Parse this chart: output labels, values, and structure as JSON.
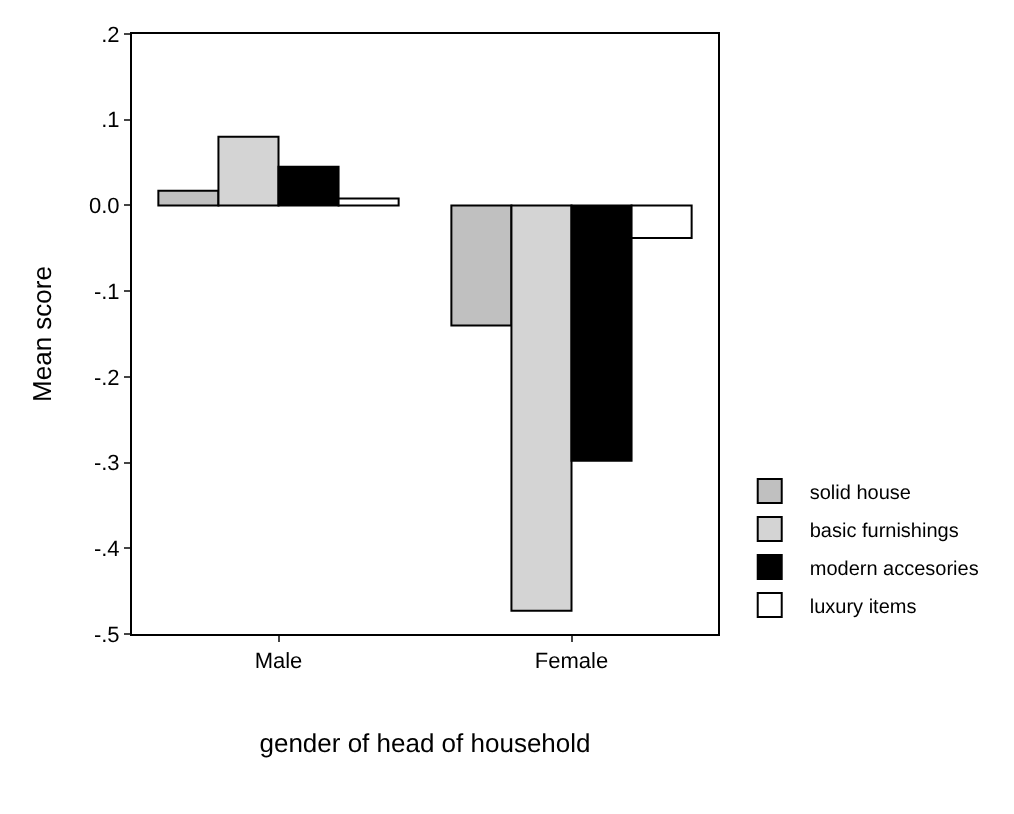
{
  "chart_data": {
    "type": "bar",
    "xlabel": "gender of head of household",
    "ylabel": "Mean score",
    "categories": [
      "Male",
      "Female"
    ],
    "series": [
      {
        "name": "solid house",
        "color": "#c0c0c0",
        "values": [
          0.017,
          -0.14
        ]
      },
      {
        "name": "basic furnishings",
        "color": "#d4d4d4",
        "values": [
          0.08,
          -0.473
        ]
      },
      {
        "name": "modern accesories",
        "color": "#000000",
        "values": [
          0.045,
          -0.298
        ]
      },
      {
        "name": "luxury items",
        "color": "#ffffff",
        "values": [
          0.008,
          -0.038
        ]
      }
    ],
    "ylim": [
      -0.5,
      0.2
    ],
    "yticks": [
      {
        "value": -0.5,
        "label": "-.5"
      },
      {
        "value": -0.4,
        "label": "-.4"
      },
      {
        "value": -0.3,
        "label": "-.3"
      },
      {
        "value": -0.2,
        "label": "-.2"
      },
      {
        "value": -0.1,
        "label": "-.1"
      },
      {
        "value": 0.0,
        "label": "0.0"
      },
      {
        "value": 0.1,
        "label": ".1"
      },
      {
        "value": 0.2,
        "label": ".2"
      }
    ],
    "legend": "right"
  }
}
